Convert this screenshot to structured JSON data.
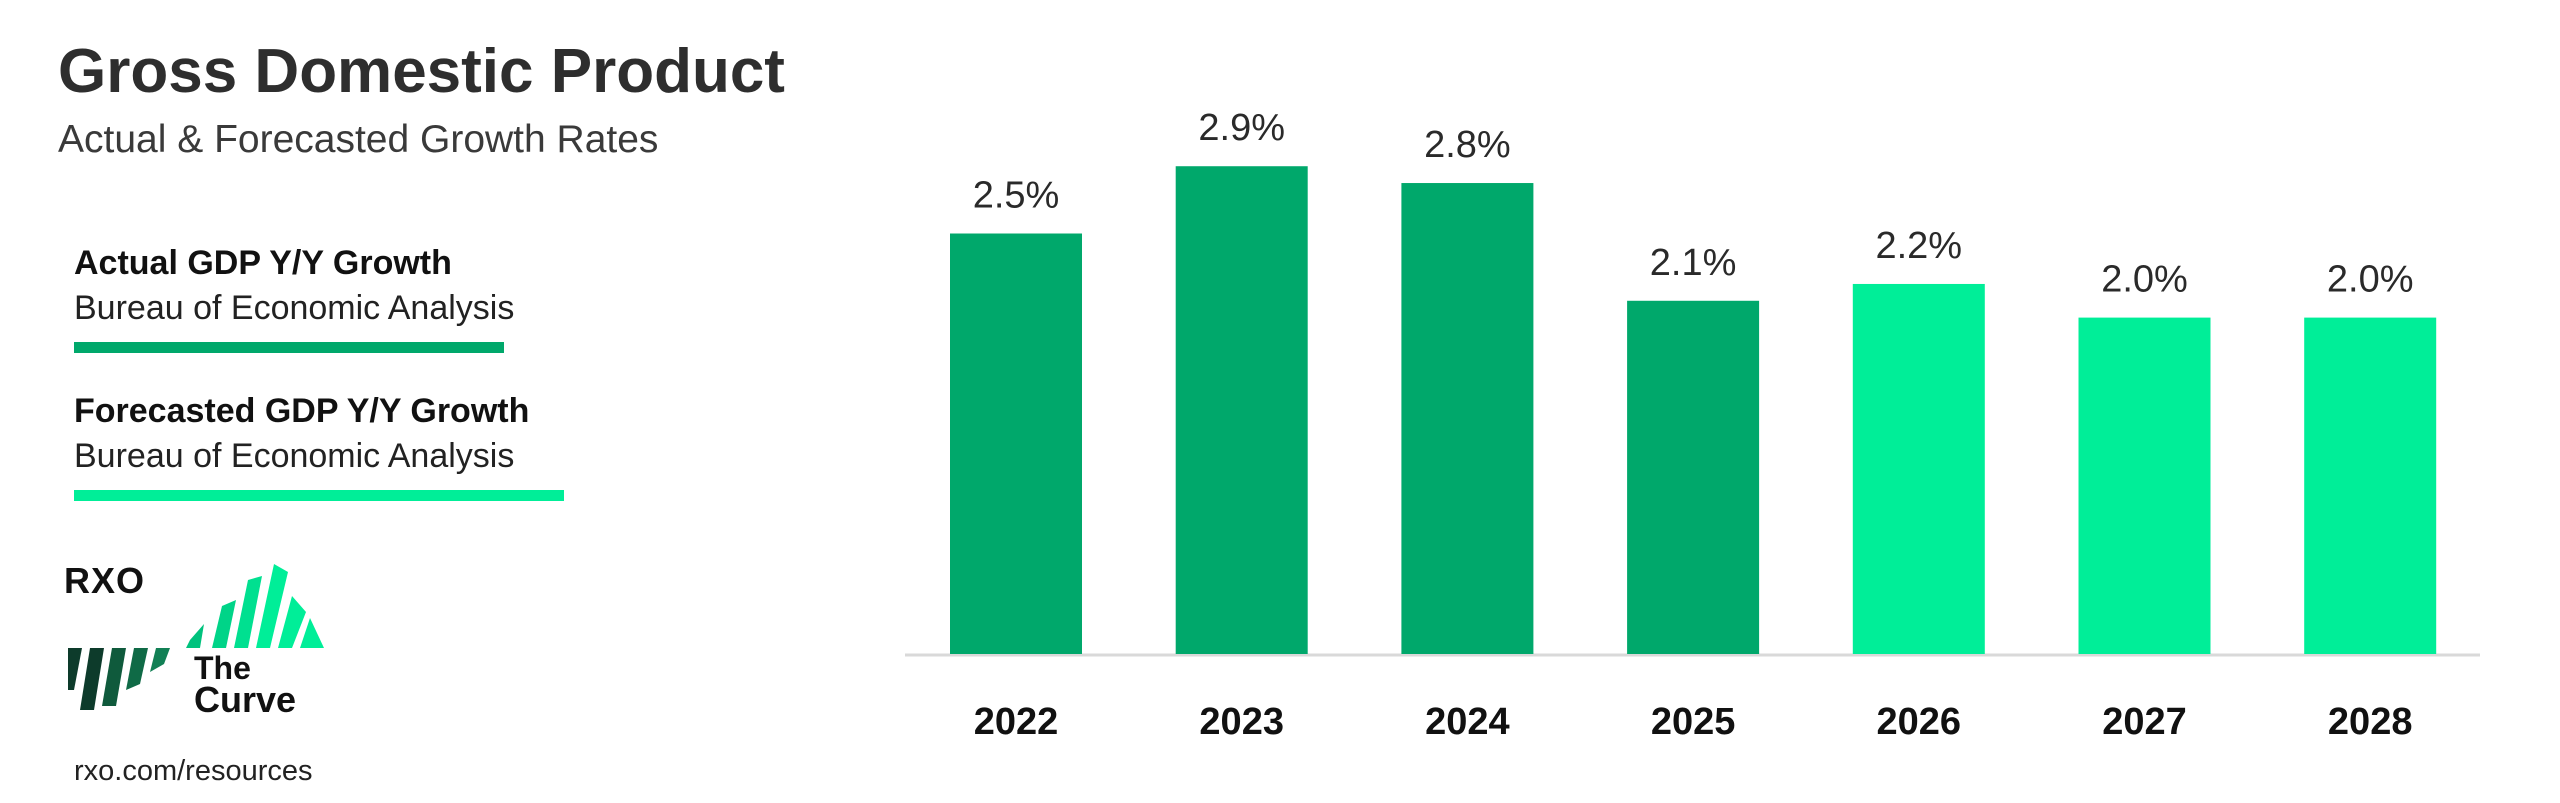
{
  "header": {
    "title": "Gross Domestic Product",
    "subtitle": "Actual & Forecasted Growth Rates"
  },
  "legend": [
    {
      "title": "Actual GDP Y/Y Growth",
      "source": "Bureau of Economic Analysis",
      "color": "#00a86b"
    },
    {
      "title": "Forecasted GDP Y/Y Growth",
      "source": "Bureau of Economic Analysis",
      "color": "#00ee98"
    }
  ],
  "logo": {
    "brand": "RXO",
    "line1": "The",
    "line2": "Curve"
  },
  "footer": {
    "link": "rxo.com/resources"
  },
  "colors": {
    "actual": "#00a86b",
    "forecast": "#00ee98",
    "axis": "#d9d9d9",
    "logo_dark": "#0d3b2b"
  },
  "chart_data": {
    "type": "bar",
    "categories": [
      "2022",
      "2023",
      "2024",
      "2025",
      "2026",
      "2027",
      "2028"
    ],
    "values": [
      2.5,
      2.9,
      2.8,
      2.1,
      2.2,
      2.0,
      2.0
    ],
    "data_labels": [
      "2.5%",
      "2.9%",
      "2.8%",
      "2.1%",
      "2.2%",
      "2.0%",
      "2.0%"
    ],
    "series_type": [
      "actual",
      "actual",
      "actual",
      "actual",
      "forecast",
      "forecast",
      "forecast"
    ],
    "title": "",
    "xlabel": "",
    "ylabel": "",
    "ylim": [
      0,
      3.0
    ],
    "grid": false,
    "legend_position": "left"
  }
}
